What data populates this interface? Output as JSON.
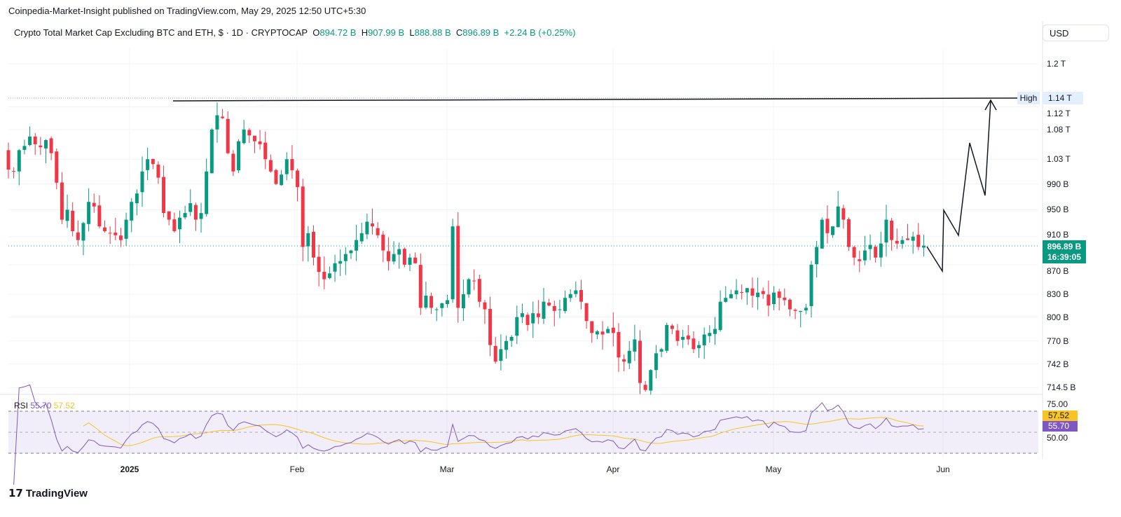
{
  "publisher_line": "Coinpedia-Market-Insight published on TradingView.com, May 29, 2025 12:50 UTC+5:30",
  "legend": {
    "symbol": "Crypto Total Market Cap Excluding BTC and ETH, $ · 1D · CRYPTOCAP",
    "o_label": "O",
    "o": "894.72 B",
    "h_label": "H",
    "h": "907.99 B",
    "l_label": "L",
    "l": "888.88 B",
    "c_label": "C",
    "c": "896.89 B",
    "change": "+2.24 B (+0.25%)"
  },
  "currency_button": "USD",
  "price_axis": [
    "1.2 T",
    "1.12 T",
    "1.08 T",
    "1.03 T",
    "990 B",
    "950 B",
    "910 B",
    "870 B",
    "830 B",
    "800 B",
    "770 B",
    "742 B",
    "714.5 B"
  ],
  "high_label": "High",
  "high_value": "1.14 T",
  "current_price": "896.89 B",
  "countdown": "16:39:05",
  "x_axis": [
    "2025",
    "Feb",
    "Mar",
    "Apr",
    "May",
    "Jun"
  ],
  "rsi": {
    "title": "RSI",
    "value": "55.70",
    "ma_value": "57.52",
    "axis": [
      "75.00",
      "50.00"
    ]
  },
  "footer_brand": "TradingView",
  "colors": {
    "up": "#089981",
    "down": "#f23645",
    "rsi": "#7e57c2",
    "rsi_ma": "#f7c325"
  },
  "chart_data": {
    "type": "candlestick",
    "title": "Crypto Total Market Cap Excluding BTC and ETH",
    "interval": "1D",
    "start_date": "2024-12-09",
    "end_date": "2025-05-29",
    "unit": "B USD",
    "scale": "log",
    "ylim": [
      700,
      1230
    ],
    "closes": [
      1013,
      1010,
      1045,
      1052,
      1068,
      1055,
      1050,
      1062,
      1040,
      992,
      935,
      950,
      918,
      905,
      930,
      962,
      955,
      925,
      918,
      915,
      912,
      905,
      935,
      962,
      975,
      1010,
      1030,
      1022,
      1000,
      945,
      935,
      918,
      938,
      945,
      960,
      935,
      945,
      1010,
      1080,
      1105,
      1100,
      1040,
      1010,
      1060,
      1080,
      1070,
      1060,
      1055,
      1030,
      1010,
      990,
      1005,
      1030,
      1012,
      985,
      895,
      915,
      880,
      860,
      850,
      858,
      872,
      875,
      885,
      890,
      905,
      915,
      932,
      925,
      912,
      890,
      875,
      885,
      892,
      870,
      880,
      872,
      812,
      828,
      812,
      810,
      818,
      822,
      925,
      812,
      830,
      850,
      848,
      820,
      810,
      765,
      745,
      760,
      770,
      775,
      800,
      805,
      790,
      805,
      800,
      820,
      815,
      808,
      810,
      825,
      830,
      835,
      820,
      795,
      780,
      782,
      778,
      785,
      780,
      750,
      745,
      758,
      772,
      720,
      712,
      735,
      755,
      760,
      790,
      785,
      770,
      775,
      772,
      760,
      765,
      778,
      780,
      785,
      820,
      825,
      830,
      835,
      832,
      838,
      828,
      832,
      830,
      815,
      832,
      825,
      822,
      810,
      808,
      808,
      812,
      870,
      895,
      935,
      915,
      925,
      955,
      935,
      895,
      880,
      875,
      890,
      898,
      880,
      900,
      935,
      905,
      900,
      905,
      905,
      910,
      895,
      896.89
    ],
    "annotations": [
      {
        "type": "horizontal-line",
        "label": "High",
        "value": 1140
      },
      {
        "type": "projection-path",
        "points_value": [
          897,
          860,
          950,
          915,
          1055,
          975,
          1140
        ],
        "end_target": "1.14 T"
      }
    ],
    "indicator": {
      "name": "RSI",
      "length": 14,
      "ma_length": 14,
      "levels": [
        70,
        50,
        30
      ],
      "last": 55.7,
      "ma_last": 57.52
    }
  }
}
